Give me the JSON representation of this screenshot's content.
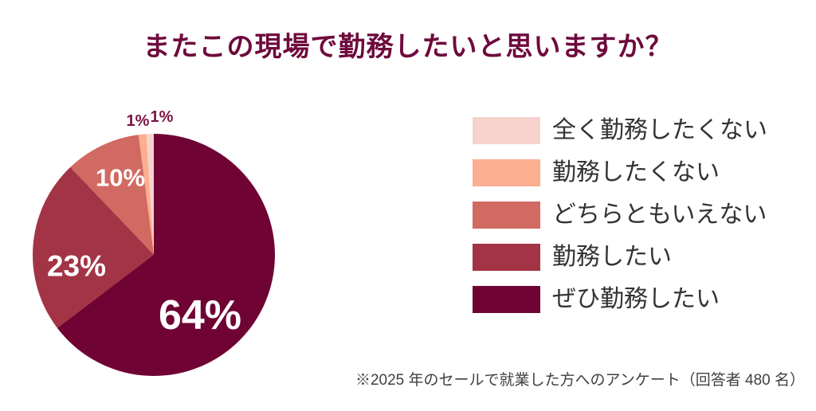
{
  "title": "またこの現場で勤務したいと思いますか？",
  "footnote": "※2025 年のセールで就業した方へのアンケート（回答者 480 名）",
  "colors": {
    "background": "#ffffff",
    "title_text": "#6e0a3c",
    "legend_text": "#333333",
    "footnote_text": "#404040",
    "percent_label_inside": "#ffffff",
    "percent_label_outside": "#7c1443"
  },
  "chart_data": {
    "type": "pie",
    "title": "またこの現場で勤務したいと思いますか？",
    "start_angle_deg": 0,
    "direction": "clockwise",
    "legend_position": "right",
    "slices": [
      {
        "label": "ぜひ勤務したい",
        "value": 64,
        "display": "64%",
        "color": "#6f0434"
      },
      {
        "label": "勤務したい",
        "value": 23,
        "display": "23%",
        "color": "#a33446"
      },
      {
        "label": "どちらともいえない",
        "value": 10,
        "display": "10%",
        "color": "#d16a62"
      },
      {
        "label": "勤務したくない",
        "value": 1,
        "display": "1%",
        "color": "#fcae91"
      },
      {
        "label": "全く勤務したくない",
        "value": 1,
        "display": "1%",
        "color": "#f5d3cc"
      }
    ],
    "legend_order_slice_indices": [
      4,
      3,
      2,
      1,
      0
    ],
    "footnote": "※2025 年のセールで就業した方へのアンケート（回答者 480 名）"
  }
}
